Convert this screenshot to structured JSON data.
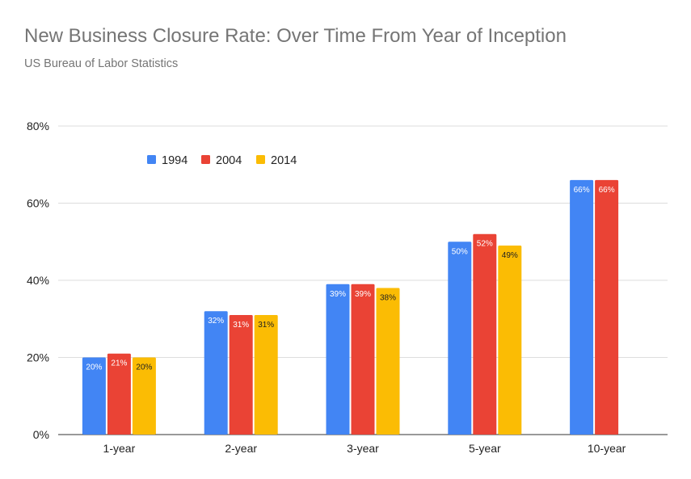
{
  "title": "New Business Closure Rate: Over Time From Year of Inception",
  "subtitle": "US Bureau of Labor Statistics",
  "colors": {
    "series": [
      "#4285f4",
      "#ea4335",
      "#fbbc04"
    ],
    "grid": "#dddddd",
    "axis": "#333333",
    "title_text": "#757575",
    "label_text": "#222222"
  },
  "chart_data": {
    "type": "bar",
    "categories": [
      "1-year",
      "2-year",
      "3-year",
      "5-year",
      "10-year"
    ],
    "series": [
      {
        "name": "1994",
        "values": [
          20,
          32,
          39,
          50,
          66
        ],
        "labels": [
          "20%",
          "32%",
          "39%",
          "50%",
          "66%"
        ]
      },
      {
        "name": "2004",
        "values": [
          21,
          31,
          39,
          52,
          66
        ],
        "labels": [
          "21%",
          "31%",
          "39%",
          "52%",
          "66%"
        ]
      },
      {
        "name": "2014",
        "values": [
          20,
          31,
          38,
          49,
          null
        ],
        "labels": [
          "20%",
          "31%",
          "38%",
          "49%",
          null
        ]
      }
    ],
    "ylim": [
      0,
      80
    ],
    "yticks": [
      0,
      20,
      40,
      60,
      80
    ],
    "ytick_labels": [
      "0%",
      "20%",
      "40%",
      "60%",
      "80%"
    ],
    "grid": true,
    "legend_position": "top-left"
  }
}
